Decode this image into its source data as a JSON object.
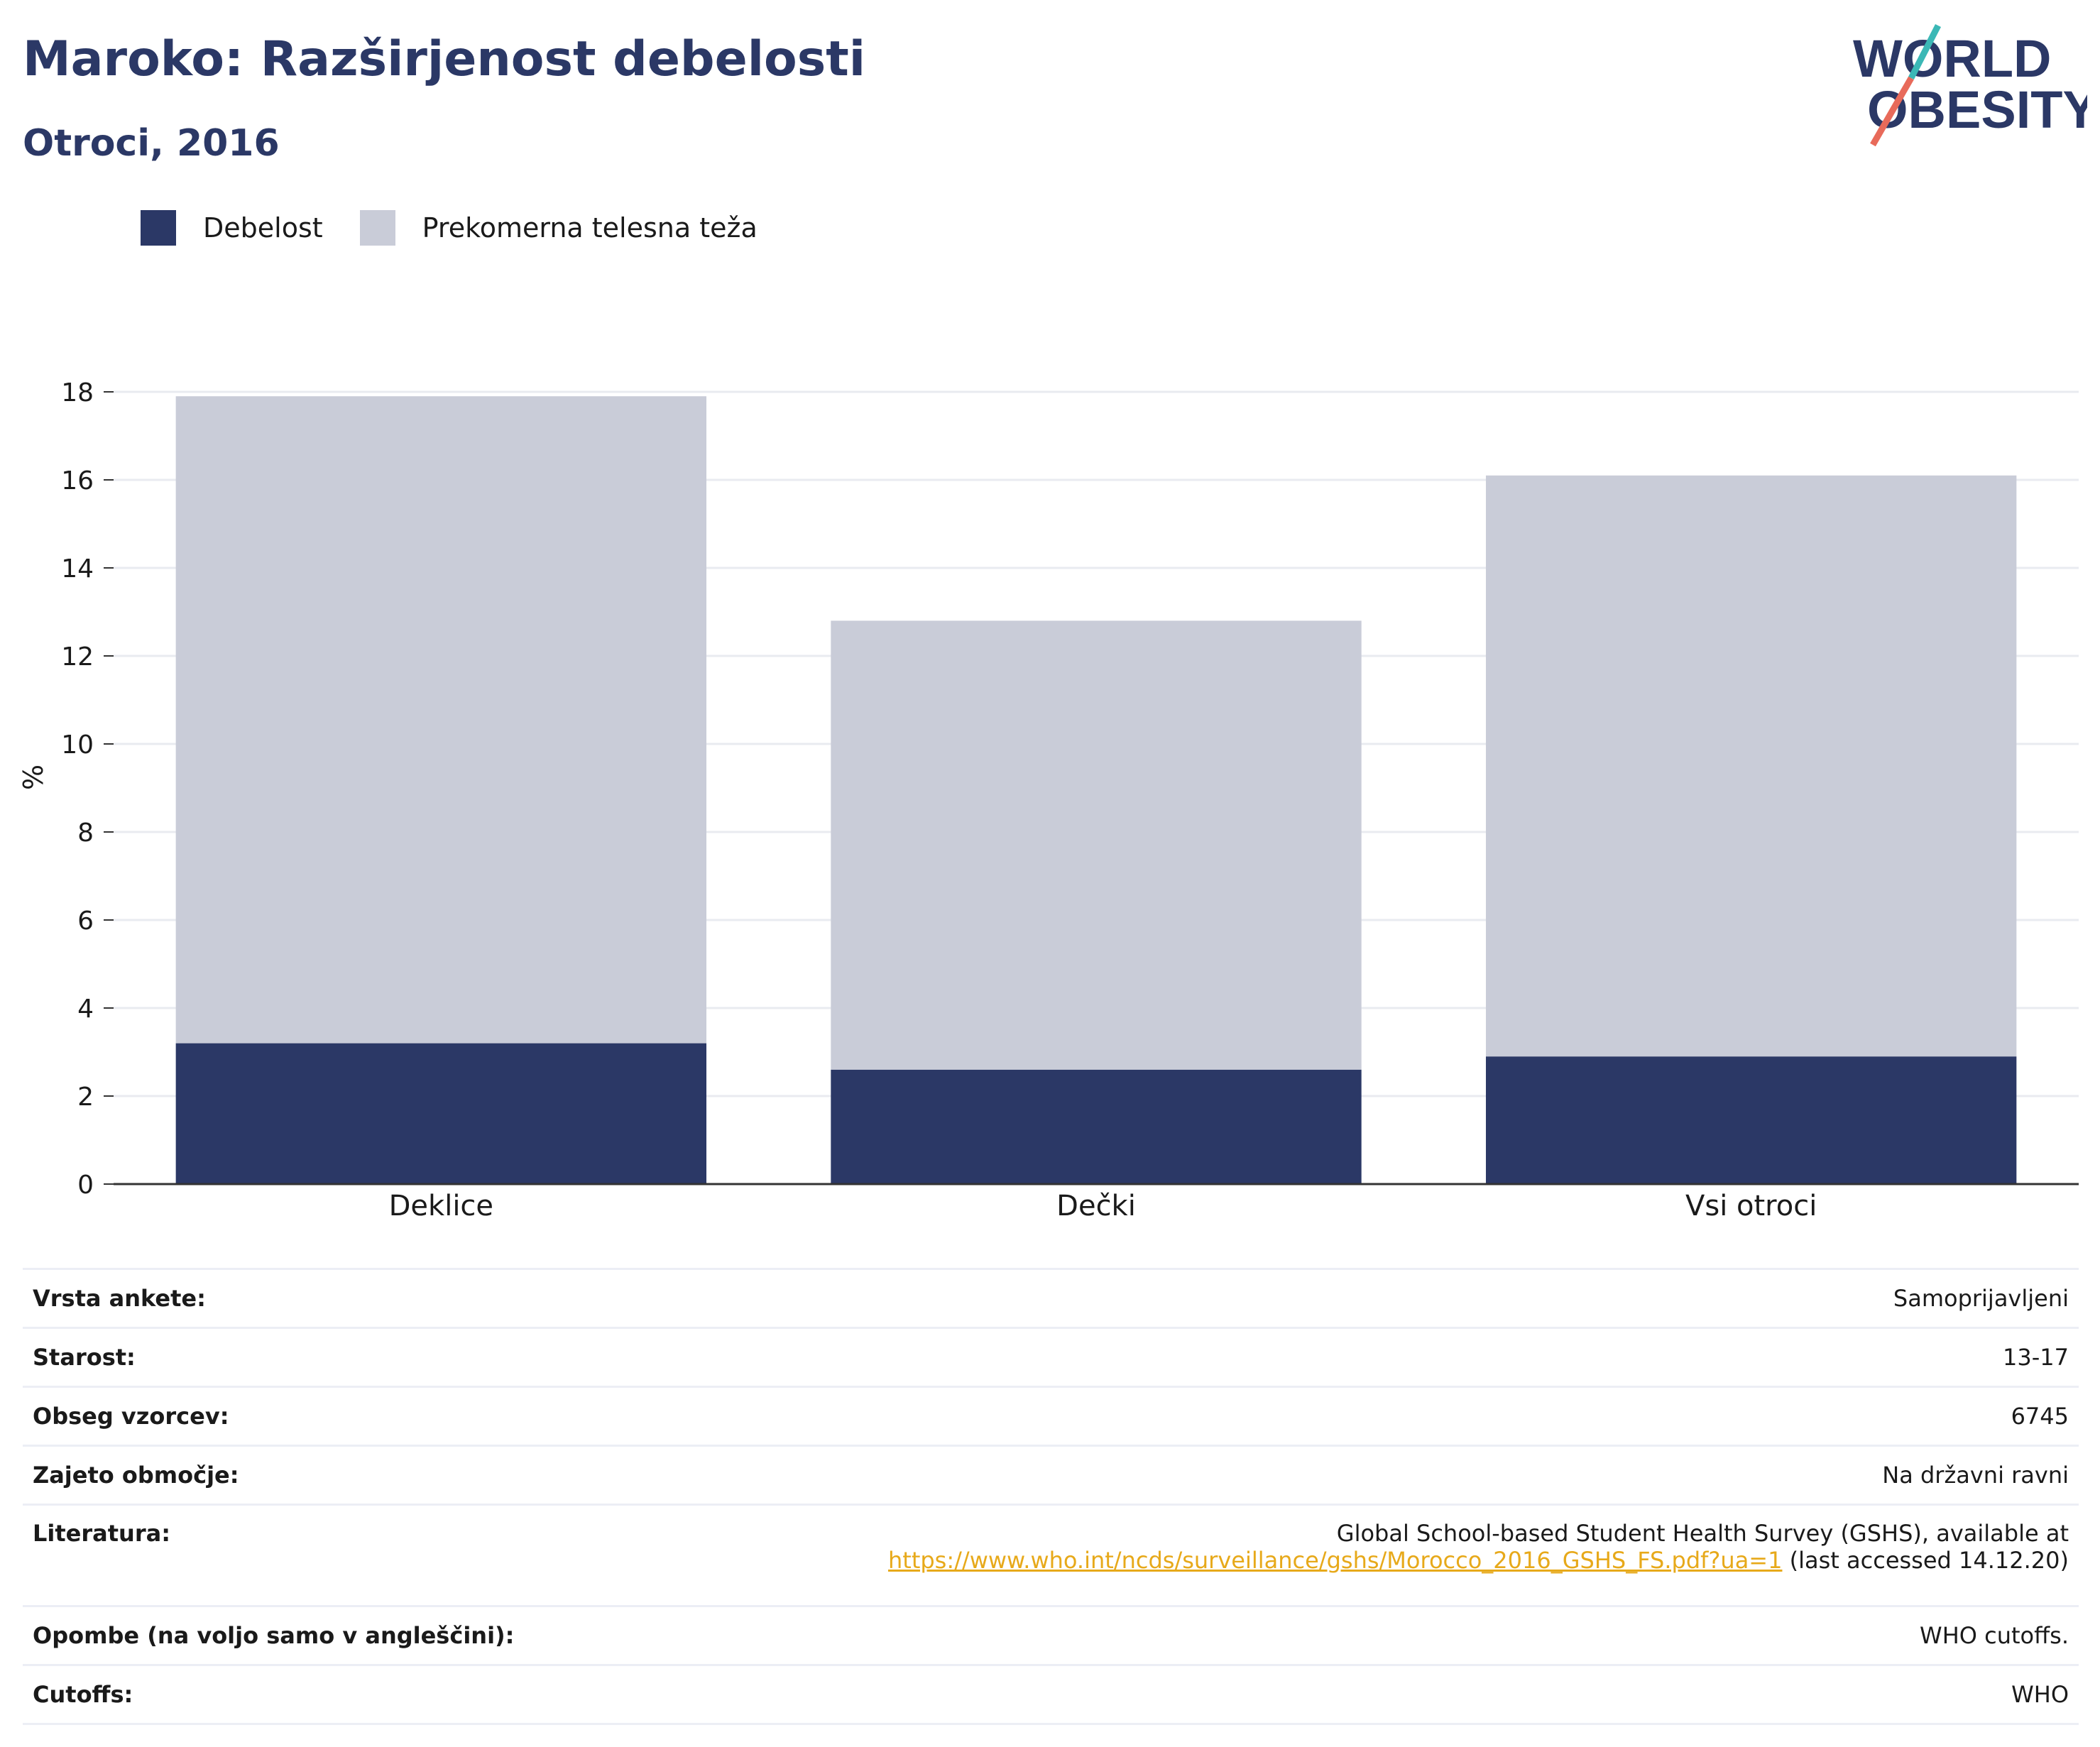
{
  "header": {
    "title": "Maroko: Razširjenost debelosti",
    "subtitle": "Otroci, 2016"
  },
  "logo": {
    "line1": "WORLD",
    "line2": "OBESITY"
  },
  "colors": {
    "obesity": "#2b3866",
    "overweight": "#c9ccd8",
    "title": "#2b3866",
    "link": "#e7a91a"
  },
  "chart_data": {
    "type": "bar",
    "stacked": true,
    "categories": [
      "Deklice",
      "Dečki",
      "Vsi otroci"
    ],
    "series": [
      {
        "name": "Debelost",
        "values": [
          3.2,
          2.6,
          2.9
        ],
        "color": "#2b3866"
      },
      {
        "name": "Prekomerna telesna teža",
        "values": [
          14.7,
          10.2,
          13.2
        ],
        "color": "#c9ccd8"
      }
    ],
    "ylabel": "%",
    "ylim": [
      0,
      18
    ],
    "yticks": [
      0,
      2,
      4,
      6,
      8,
      10,
      12,
      14,
      16,
      18
    ],
    "grid": true,
    "legend": "top-left"
  },
  "info": {
    "rows": [
      {
        "key": "Vrsta ankete:",
        "value": "Samoprijavljeni"
      },
      {
        "key": "Starost:",
        "value": "13-17"
      },
      {
        "key": "Obseg vzorcev:",
        "value": "6745"
      },
      {
        "key": "Zajeto območje:",
        "value": "Na državni ravni"
      }
    ],
    "reference": {
      "key": "Literatura:",
      "line1": "Global School-based Student Health Survey (GSHS), available at",
      "link": "https://www.who.int/ncds/surveillance/gshs/Morocco_2016_GSHS_FS.pdf?ua=1",
      "suffix": " (last accessed 14.12.20)"
    },
    "notes": {
      "key": "Opombe (na voljo samo v angleščini):",
      "value": "WHO cutoffs."
    },
    "cutoffs": {
      "key": "Cutoffs:",
      "value": "WHO"
    }
  }
}
